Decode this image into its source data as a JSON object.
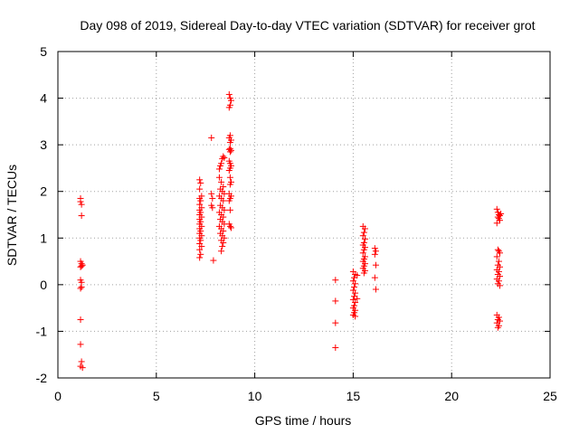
{
  "chart_data": {
    "type": "scatter",
    "title": "Day 098 of 2019, Sidereal Day-to-day VTEC variation (SDTVAR) for receiver grot",
    "xlabel": "GPS time / hours",
    "ylabel": "SDTVAR / TECUs",
    "xlim": [
      0,
      25
    ],
    "ylim": [
      -2,
      5
    ],
    "xticks": [
      0,
      5,
      10,
      15,
      20,
      25
    ],
    "yticks": [
      -2,
      -1,
      0,
      1,
      2,
      3,
      4,
      5
    ],
    "grid": true,
    "marker": "+",
    "color": "#ff0000",
    "series": [
      {
        "name": "SDTVAR",
        "points": [
          [
            1.15,
            1.85
          ],
          [
            1.15,
            1.78
          ],
          [
            1.2,
            1.72
          ],
          [
            1.2,
            1.48
          ],
          [
            1.15,
            0.5
          ],
          [
            1.2,
            0.45
          ],
          [
            1.25,
            0.42
          ],
          [
            1.15,
            0.38
          ],
          [
            1.2,
            0.4
          ],
          [
            1.15,
            0.1
          ],
          [
            1.2,
            0.05
          ],
          [
            1.15,
            -0.08
          ],
          [
            1.2,
            -0.05
          ],
          [
            1.15,
            -0.75
          ],
          [
            1.15,
            -1.28
          ],
          [
            1.2,
            -1.65
          ],
          [
            1.15,
            -1.75
          ],
          [
            1.25,
            -1.78
          ],
          [
            7.2,
            2.25
          ],
          [
            7.25,
            2.18
          ],
          [
            7.2,
            2.05
          ],
          [
            7.3,
            1.9
          ],
          [
            7.2,
            1.85
          ],
          [
            7.25,
            1.8
          ],
          [
            7.2,
            1.72
          ],
          [
            7.3,
            1.65
          ],
          [
            7.2,
            1.6
          ],
          [
            7.25,
            1.55
          ],
          [
            7.2,
            1.5
          ],
          [
            7.3,
            1.45
          ],
          [
            7.2,
            1.4
          ],
          [
            7.25,
            1.35
          ],
          [
            7.2,
            1.3
          ],
          [
            7.3,
            1.25
          ],
          [
            7.2,
            1.2
          ],
          [
            7.25,
            1.15
          ],
          [
            7.2,
            1.1
          ],
          [
            7.3,
            1.05
          ],
          [
            7.2,
            1.0
          ],
          [
            7.25,
            0.95
          ],
          [
            7.2,
            0.88
          ],
          [
            7.3,
            0.82
          ],
          [
            7.2,
            0.75
          ],
          [
            7.25,
            0.65
          ],
          [
            7.2,
            0.58
          ],
          [
            7.8,
            3.15
          ],
          [
            7.8,
            1.95
          ],
          [
            7.85,
            1.85
          ],
          [
            7.8,
            1.7
          ],
          [
            7.85,
            1.65
          ],
          [
            7.9,
            0.52
          ],
          [
            8.2,
            2.48
          ],
          [
            8.25,
            2.55
          ],
          [
            8.3,
            2.6
          ],
          [
            8.35,
            2.7
          ],
          [
            8.4,
            2.75
          ],
          [
            8.45,
            2.72
          ],
          [
            8.2,
            2.3
          ],
          [
            8.3,
            2.2
          ],
          [
            8.4,
            2.1
          ],
          [
            8.25,
            2.05
          ],
          [
            8.35,
            2.0
          ],
          [
            8.45,
            1.95
          ],
          [
            8.2,
            1.9
          ],
          [
            8.3,
            1.85
          ],
          [
            8.4,
            1.8
          ],
          [
            8.25,
            1.7
          ],
          [
            8.35,
            1.65
          ],
          [
            8.45,
            1.6
          ],
          [
            8.2,
            1.55
          ],
          [
            8.3,
            1.5
          ],
          [
            8.4,
            1.45
          ],
          [
            8.25,
            1.4
          ],
          [
            8.35,
            1.35
          ],
          [
            8.45,
            1.3
          ],
          [
            8.2,
            1.25
          ],
          [
            8.3,
            1.2
          ],
          [
            8.4,
            1.15
          ],
          [
            8.25,
            1.1
          ],
          [
            8.35,
            1.05
          ],
          [
            8.45,
            1.0
          ],
          [
            8.3,
            0.95
          ],
          [
            8.4,
            0.9
          ],
          [
            8.35,
            0.82
          ],
          [
            8.3,
            0.72
          ],
          [
            8.7,
            4.08
          ],
          [
            8.75,
            4.0
          ],
          [
            8.8,
            3.95
          ],
          [
            8.75,
            3.85
          ],
          [
            8.7,
            3.8
          ],
          [
            8.75,
            3.2
          ],
          [
            8.7,
            3.15
          ],
          [
            8.8,
            3.1
          ],
          [
            8.75,
            3.05
          ],
          [
            8.7,
            2.9
          ],
          [
            8.75,
            2.92
          ],
          [
            8.8,
            2.88
          ],
          [
            8.75,
            2.85
          ],
          [
            8.7,
            2.65
          ],
          [
            8.75,
            2.6
          ],
          [
            8.8,
            2.55
          ],
          [
            8.75,
            2.5
          ],
          [
            8.7,
            2.45
          ],
          [
            8.75,
            2.3
          ],
          [
            8.8,
            2.2
          ],
          [
            8.75,
            2.15
          ],
          [
            8.7,
            1.95
          ],
          [
            8.8,
            1.9
          ],
          [
            8.75,
            1.85
          ],
          [
            8.7,
            1.8
          ],
          [
            8.75,
            1.6
          ],
          [
            8.7,
            1.3
          ],
          [
            8.75,
            1.25
          ],
          [
            8.8,
            1.22
          ],
          [
            14.1,
            0.1
          ],
          [
            14.1,
            -0.35
          ],
          [
            14.1,
            -0.82
          ],
          [
            14.1,
            -1.35
          ],
          [
            15.0,
            0.28
          ],
          [
            15.1,
            0.22
          ],
          [
            15.05,
            0.15
          ],
          [
            15.0,
            0.08
          ],
          [
            15.1,
            0.02
          ],
          [
            15.05,
            -0.05
          ],
          [
            15.0,
            -0.12
          ],
          [
            15.1,
            -0.18
          ],
          [
            15.05,
            -0.25
          ],
          [
            15.0,
            -0.32
          ],
          [
            15.1,
            -0.38
          ],
          [
            15.05,
            -0.45
          ],
          [
            15.0,
            -0.5
          ],
          [
            15.1,
            -0.55
          ],
          [
            15.05,
            -0.6
          ],
          [
            15.0,
            -0.65
          ],
          [
            15.1,
            -0.68
          ],
          [
            15.2,
            -0.3
          ],
          [
            15.2,
            0.2
          ],
          [
            15.5,
            1.25
          ],
          [
            15.6,
            1.2
          ],
          [
            15.55,
            1.12
          ],
          [
            15.5,
            1.05
          ],
          [
            15.6,
            0.98
          ],
          [
            15.55,
            0.9
          ],
          [
            15.5,
            0.85
          ],
          [
            15.6,
            0.8
          ],
          [
            15.55,
            0.75
          ],
          [
            15.5,
            0.68
          ],
          [
            15.6,
            0.6
          ],
          [
            15.55,
            0.55
          ],
          [
            15.5,
            0.5
          ],
          [
            15.6,
            0.45
          ],
          [
            15.55,
            0.4
          ],
          [
            15.5,
            0.35
          ],
          [
            15.6,
            0.3
          ],
          [
            15.55,
            0.25
          ],
          [
            16.1,
            0.78
          ],
          [
            16.15,
            0.72
          ],
          [
            16.1,
            0.65
          ],
          [
            16.15,
            0.42
          ],
          [
            16.1,
            0.15
          ],
          [
            16.15,
            -0.1
          ],
          [
            22.3,
            1.62
          ],
          [
            22.35,
            1.55
          ],
          [
            22.4,
            1.5
          ],
          [
            22.45,
            1.48
          ],
          [
            22.5,
            1.52
          ],
          [
            22.35,
            1.45
          ],
          [
            22.4,
            1.42
          ],
          [
            22.45,
            1.38
          ],
          [
            22.3,
            1.32
          ],
          [
            22.35,
            0.75
          ],
          [
            22.4,
            0.72
          ],
          [
            22.45,
            0.68
          ],
          [
            22.3,
            0.6
          ],
          [
            22.4,
            0.5
          ],
          [
            22.35,
            0.42
          ],
          [
            22.45,
            0.38
          ],
          [
            22.3,
            0.32
          ],
          [
            22.4,
            0.28
          ],
          [
            22.35,
            0.22
          ],
          [
            22.45,
            0.18
          ],
          [
            22.3,
            0.12
          ],
          [
            22.4,
            0.08
          ],
          [
            22.35,
            0.02
          ],
          [
            22.45,
            -0.02
          ],
          [
            22.3,
            -0.65
          ],
          [
            22.4,
            -0.7
          ],
          [
            22.35,
            -0.75
          ],
          [
            22.45,
            -0.78
          ],
          [
            22.3,
            -0.82
          ],
          [
            22.4,
            -0.88
          ],
          [
            22.35,
            -0.92
          ]
        ]
      }
    ]
  }
}
